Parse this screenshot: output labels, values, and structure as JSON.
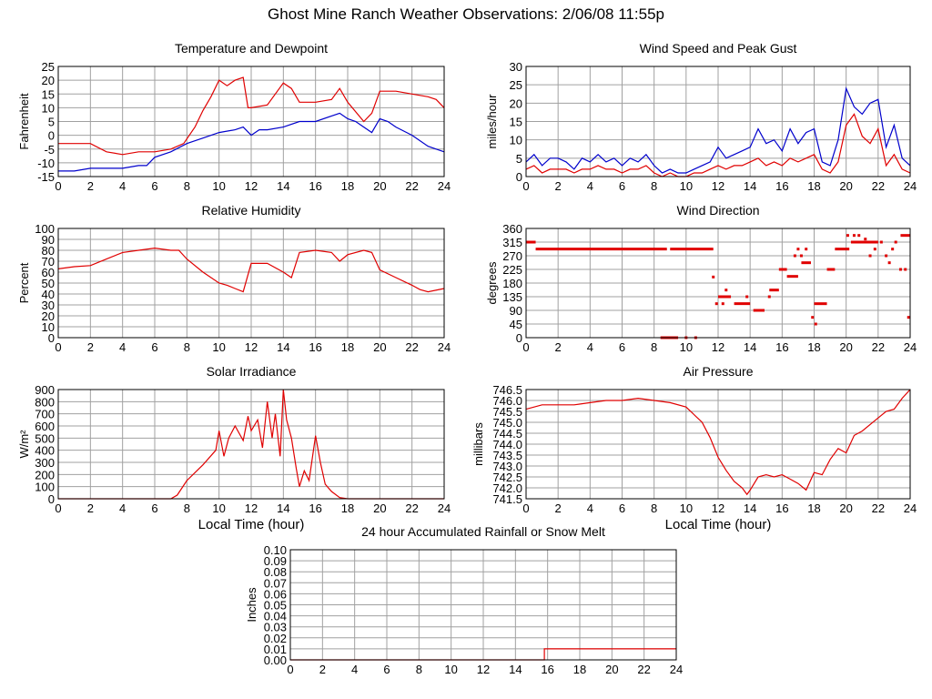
{
  "title": "Ghost Mine Ranch Weather Observations: 2/06/08 11:55p",
  "colors": {
    "red": "#e00000",
    "blue": "#0000cc",
    "grid": "#a0a0a0",
    "frame": "#000000"
  },
  "chart_data": [
    {
      "id": "temp",
      "type": "line",
      "title": "Temperature and Dewpoint",
      "ylabel": "Fahrenheit",
      "xlabel": "",
      "xlim": [
        0,
        24
      ],
      "ylim": [
        -15,
        25
      ],
      "xticks": [
        0,
        2,
        4,
        6,
        8,
        10,
        12,
        14,
        16,
        18,
        20,
        22,
        24
      ],
      "yticks": [
        -15,
        -10,
        -5,
        0,
        5,
        10,
        15,
        20,
        25
      ],
      "grid": true,
      "series": [
        {
          "color": "red",
          "x": [
            0,
            1,
            2,
            3,
            4,
            5,
            6,
            7,
            7.8,
            8.5,
            9,
            9.5,
            10,
            10.5,
            11,
            11.5,
            11.8,
            12,
            13,
            14,
            14.5,
            15,
            16,
            17,
            17.5,
            18,
            19,
            19.5,
            20,
            21,
            22,
            23,
            23.5,
            24
          ],
          "y": [
            -3,
            -3,
            -3,
            -6,
            -7,
            -6,
            -6,
            -5,
            -3,
            3,
            9,
            14,
            20,
            18,
            20,
            21,
            10,
            10,
            11,
            19,
            17,
            12,
            12,
            13,
            17,
            12,
            5,
            8,
            16,
            16,
            15,
            14,
            13,
            10
          ]
        },
        {
          "color": "blue",
          "x": [
            0,
            1,
            2,
            3,
            4,
            5,
            5.5,
            6,
            7,
            8,
            9,
            10,
            11,
            11.5,
            12,
            12.5,
            13,
            14,
            15,
            16,
            17,
            17.5,
            18,
            18.5,
            19,
            19.5,
            20,
            20.5,
            21,
            22,
            23,
            23.5,
            24
          ],
          "y": [
            -13,
            -13,
            -12,
            -12,
            -12,
            -11,
            -11,
            -8,
            -6,
            -3,
            -1,
            1,
            2,
            3,
            0,
            2,
            2,
            3,
            5,
            5,
            7,
            8,
            6,
            5,
            3,
            1,
            6,
            5,
            3,
            0,
            -4,
            -5,
            -6
          ]
        }
      ]
    },
    {
      "id": "wind",
      "type": "line",
      "title": "Wind Speed and Peak Gust",
      "ylabel": "miles/hour",
      "xlabel": "",
      "xlim": [
        0,
        24
      ],
      "ylim": [
        0,
        30
      ],
      "xticks": [
        0,
        2,
        4,
        6,
        8,
        10,
        12,
        14,
        16,
        18,
        20,
        22,
        24
      ],
      "yticks": [
        0,
        5,
        10,
        15,
        20,
        25,
        30
      ],
      "grid": true,
      "series": [
        {
          "color": "blue",
          "x": [
            0,
            0.5,
            1,
            1.5,
            2,
            2.5,
            3,
            3.5,
            4,
            4.5,
            5,
            5.5,
            6,
            6.5,
            7,
            7.5,
            8,
            8.5,
            9,
            9.5,
            10,
            10.5,
            11,
            11.5,
            12,
            12.5,
            13,
            13.5,
            14,
            14.5,
            15,
            15.5,
            16,
            16.5,
            17,
            17.5,
            18,
            18.5,
            19,
            19.5,
            20,
            20.5,
            21,
            21.5,
            22,
            22.5,
            23,
            23.5,
            24
          ],
          "y": [
            4,
            6,
            3,
            5,
            5,
            4,
            2,
            5,
            4,
            6,
            4,
            5,
            3,
            5,
            4,
            6,
            3,
            1,
            2,
            1,
            1,
            2,
            3,
            4,
            8,
            5,
            6,
            7,
            8,
            13,
            9,
            10,
            7,
            13,
            9,
            12,
            13,
            4,
            3,
            10,
            24,
            19,
            17,
            20,
            21,
            8,
            14,
            5,
            3
          ]
        },
        {
          "color": "red",
          "x": [
            0,
            0.5,
            1,
            1.5,
            2,
            2.5,
            3,
            3.5,
            4,
            4.5,
            5,
            5.5,
            6,
            6.5,
            7,
            7.5,
            8,
            8.5,
            9,
            9.5,
            10,
            10.5,
            11,
            11.5,
            12,
            12.5,
            13,
            13.5,
            14,
            14.5,
            15,
            15.5,
            16,
            16.5,
            17,
            17.5,
            18,
            18.5,
            19,
            19.5,
            20,
            20.5,
            21,
            21.5,
            22,
            22.5,
            23,
            23.5,
            24
          ],
          "y": [
            2,
            3,
            1,
            2,
            2,
            2,
            1,
            2,
            2,
            3,
            2,
            2,
            1,
            2,
            2,
            3,
            1,
            0,
            1,
            0,
            0,
            1,
            1,
            2,
            3,
            2,
            3,
            3,
            4,
            5,
            3,
            4,
            3,
            5,
            4,
            5,
            6,
            2,
            1,
            4,
            14,
            17,
            11,
            9,
            13,
            3,
            6,
            2,
            1
          ]
        }
      ]
    },
    {
      "id": "rh",
      "type": "line",
      "title": "Relative Humidity",
      "ylabel": "Percent",
      "xlabel": "",
      "xlim": [
        0,
        24
      ],
      "ylim": [
        0,
        100
      ],
      "xticks": [
        0,
        2,
        4,
        6,
        8,
        10,
        12,
        14,
        16,
        18,
        20,
        22,
        24
      ],
      "yticks": [
        0,
        10,
        20,
        30,
        40,
        50,
        60,
        70,
        80,
        90,
        100
      ],
      "grid": true,
      "series": [
        {
          "color": "red",
          "x": [
            0,
            1,
            2,
            3,
            4,
            5,
            6,
            7,
            7.5,
            8,
            9,
            10,
            10.5,
            11,
            11.5,
            12,
            13,
            14,
            14.5,
            15,
            16,
            17,
            17.5,
            18,
            19,
            19.5,
            20,
            21,
            22,
            22.5,
            23,
            24
          ],
          "y": [
            63,
            65,
            66,
            72,
            78,
            80,
            82,
            80,
            80,
            72,
            60,
            50,
            48,
            45,
            42,
            68,
            68,
            60,
            55,
            78,
            80,
            78,
            70,
            76,
            80,
            78,
            62,
            55,
            48,
            44,
            42,
            45
          ]
        }
      ]
    },
    {
      "id": "dir",
      "type": "scatter",
      "title": "Wind Direction",
      "ylabel": "degrees",
      "xlabel": "",
      "xlim": [
        0,
        24
      ],
      "ylim": [
        0,
        360
      ],
      "xticks": [
        0,
        2,
        4,
        6,
        8,
        10,
        12,
        14,
        16,
        18,
        20,
        22,
        24
      ],
      "yticks": [
        0,
        45,
        90,
        135,
        180,
        225,
        270,
        315,
        360
      ],
      "grid": true,
      "segments": [
        {
          "x0": 0,
          "x1": 0.6,
          "y": 315
        },
        {
          "x0": 0.6,
          "x1": 8.8,
          "y": 292
        },
        {
          "x0": 9.0,
          "x1": 11.7,
          "y": 292
        },
        {
          "x0": 8.4,
          "x1": 9.5,
          "y": 0
        },
        {
          "x0": 12.0,
          "x1": 12.8,
          "y": 135
        },
        {
          "x0": 13.0,
          "x1": 14.0,
          "y": 112
        },
        {
          "x0": 14.2,
          "x1": 14.9,
          "y": 90
        },
        {
          "x0": 15.2,
          "x1": 15.8,
          "y": 157
        },
        {
          "x0": 15.8,
          "x1": 16.3,
          "y": 225
        },
        {
          "x0": 16.3,
          "x1": 17.0,
          "y": 202
        },
        {
          "x0": 17.2,
          "x1": 17.8,
          "y": 247
        },
        {
          "x0": 18.0,
          "x1": 18.8,
          "y": 112
        },
        {
          "x0": 18.8,
          "x1": 19.3,
          "y": 225
        },
        {
          "x0": 19.3,
          "x1": 20.2,
          "y": 292
        },
        {
          "x0": 20.3,
          "x1": 22.0,
          "y": 315
        },
        {
          "x0": 23.4,
          "x1": 24.0,
          "y": 337
        }
      ],
      "points": [
        [
          10.0,
          0
        ],
        [
          10.6,
          0
        ],
        [
          11.7,
          200
        ],
        [
          11.9,
          112
        ],
        [
          12.3,
          112
        ],
        [
          12.5,
          157
        ],
        [
          13.8,
          135
        ],
        [
          15.2,
          135
        ],
        [
          16.8,
          270
        ],
        [
          17.0,
          292
        ],
        [
          17.2,
          270
        ],
        [
          17.5,
          292
        ],
        [
          17.9,
          67
        ],
        [
          18.1,
          45
        ],
        [
          20.1,
          337
        ],
        [
          20.5,
          337
        ],
        [
          20.8,
          337
        ],
        [
          21.2,
          325
        ],
        [
          21.5,
          270
        ],
        [
          21.8,
          292
        ],
        [
          22.2,
          315
        ],
        [
          22.5,
          270
        ],
        [
          22.7,
          247
        ],
        [
          22.9,
          292
        ],
        [
          23.1,
          315
        ],
        [
          23.4,
          225
        ],
        [
          23.7,
          225
        ],
        [
          23.9,
          67
        ]
      ]
    },
    {
      "id": "solar",
      "type": "line",
      "title": "Solar Irradiance",
      "ylabel": "W/m²",
      "xlabel": "Local Time (hour)",
      "xlim": [
        0,
        24
      ],
      "ylim": [
        0,
        900
      ],
      "xticks": [
        0,
        2,
        4,
        6,
        8,
        10,
        12,
        14,
        16,
        18,
        20,
        22,
        24
      ],
      "yticks": [
        0,
        100,
        200,
        300,
        400,
        500,
        600,
        700,
        800,
        900
      ],
      "grid": true,
      "series": [
        {
          "color": "red",
          "x": [
            0,
            7,
            7.4,
            8,
            9,
            9.8,
            10,
            10.3,
            10.6,
            11,
            11.5,
            11.8,
            12,
            12.4,
            12.7,
            13,
            13.3,
            13.5,
            13.8,
            14,
            14.2,
            14.5,
            14.8,
            15,
            15.3,
            15.6,
            16,
            16.3,
            16.6,
            17,
            17.5,
            18,
            24
          ],
          "y": [
            0,
            0,
            30,
            150,
            280,
            400,
            560,
            350,
            500,
            600,
            480,
            680,
            560,
            650,
            420,
            800,
            500,
            700,
            350,
            900,
            650,
            500,
            250,
            100,
            230,
            150,
            520,
            300,
            120,
            60,
            10,
            0,
            0
          ]
        }
      ]
    },
    {
      "id": "press",
      "type": "line",
      "title": "Air Pressure",
      "ylabel": "millibars",
      "xlabel": "Local Time (hour)",
      "xlim": [
        0,
        24
      ],
      "ylim": [
        741.5,
        746.5
      ],
      "xticks": [
        0,
        2,
        4,
        6,
        8,
        10,
        12,
        14,
        16,
        18,
        20,
        22,
        24
      ],
      "yticks": [
        741.5,
        742.0,
        742.5,
        743.0,
        743.5,
        744.0,
        744.5,
        745.0,
        745.5,
        746.0,
        746.5
      ],
      "grid": true,
      "series": [
        {
          "color": "red",
          "x": [
            0,
            1,
            2,
            3,
            4,
            5,
            6,
            7,
            8,
            9,
            10,
            11,
            11.5,
            12,
            12.5,
            13,
            13.5,
            13.8,
            14,
            14.5,
            15,
            15.5,
            16,
            16.5,
            17,
            17.5,
            18,
            18.5,
            19,
            19.5,
            20,
            20.5,
            21,
            22,
            22.5,
            23,
            23.5,
            24
          ],
          "y": [
            745.6,
            745.8,
            745.8,
            745.8,
            745.9,
            746.0,
            746.0,
            746.1,
            746.0,
            745.9,
            745.7,
            745.0,
            744.3,
            743.4,
            742.8,
            742.3,
            742.0,
            741.7,
            741.9,
            742.5,
            742.6,
            742.5,
            742.6,
            742.4,
            742.2,
            741.9,
            742.7,
            742.6,
            743.3,
            743.8,
            743.6,
            744.4,
            744.6,
            745.2,
            745.5,
            745.6,
            746.1,
            746.5
          ]
        }
      ]
    },
    {
      "id": "rain",
      "type": "line",
      "title": "24 hour Accumulated Rainfall or Snow Melt",
      "ylabel": "Inches",
      "xlabel": "",
      "xlim": [
        0,
        24
      ],
      "ylim": [
        0,
        0.1
      ],
      "xticks": [
        0,
        2,
        4,
        6,
        8,
        10,
        12,
        14,
        16,
        18,
        20,
        22,
        24
      ],
      "yticks": [
        0.0,
        0.01,
        0.02,
        0.03,
        0.04,
        0.05,
        0.06,
        0.07,
        0.08,
        0.09,
        0.1
      ],
      "grid": true,
      "series": [
        {
          "color": "red",
          "x": [
            0,
            15.8,
            15.8,
            24
          ],
          "y": [
            0,
            0,
            0.01,
            0.01
          ]
        }
      ]
    }
  ]
}
